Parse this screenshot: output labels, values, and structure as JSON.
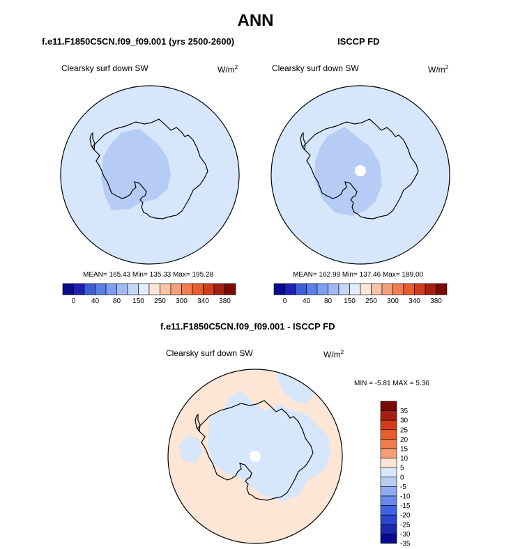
{
  "main_title": "ANN",
  "panels": {
    "left": {
      "case": "f.e11.F1850C5CN.f09_f09.001 (yrs 2500-2600)",
      "variable": "Clearsky surf down SW",
      "units": "W/m",
      "units_sup": "2",
      "stats": "MEAN= 165.43  Min= 135.33  Max= 195.28"
    },
    "right": {
      "case": "ISCCP FD",
      "variable": "Clearsky surf down SW",
      "units": "W/m",
      "units_sup": "2",
      "stats": "MEAN= 162.99  Min= 137.46  Max= 189.00"
    },
    "diff": {
      "case": "f.e11.F1850C5CN.f09_f09.001 - ISCCP FD",
      "variable": "Clearsky surf down SW",
      "units": "W/m",
      "units_sup": "2",
      "stats": "MIN =  -5.81 MAX =   5.36"
    }
  },
  "chart_data": [
    {
      "type": "heatmap",
      "title": "f.e11.F1850C5CN.f09_f09.001 (yrs 2500-2600)",
      "variable": "Clearsky surf down SW",
      "units": "W/m2",
      "projection": "south polar stereographic",
      "mean": 165.43,
      "min": 135.33,
      "max": 195.28,
      "colorbar": {
        "orientation": "horizontal",
        "colors": [
          "#0a0a8c",
          "#1f1fb5",
          "#3c5fd8",
          "#5a7fe6",
          "#7d9df0",
          "#a0b9f5",
          "#c5d6f8",
          "#e2ecfb",
          "#fde6d6",
          "#f9c3a6",
          "#f5a07a",
          "#f07c50",
          "#e85c2c",
          "#d13d1a",
          "#a32010",
          "#7a0a06"
        ],
        "tick_labels": [
          "0",
          "40",
          "80",
          "150",
          "250",
          "300",
          "340",
          "380"
        ]
      }
    },
    {
      "type": "heatmap",
      "title": "ISCCP FD",
      "variable": "Clearsky surf down SW",
      "units": "W/m2",
      "projection": "south polar stereographic",
      "mean": 162.99,
      "min": 137.46,
      "max": 189.0,
      "colorbar": {
        "orientation": "horizontal",
        "colors": [
          "#0a0a8c",
          "#1f1fb5",
          "#3c5fd8",
          "#5a7fe6",
          "#7d9df0",
          "#a0b9f5",
          "#c5d6f8",
          "#e2ecfb",
          "#fde6d6",
          "#f9c3a6",
          "#f5a07a",
          "#f07c50",
          "#e85c2c",
          "#d13d1a",
          "#a32010",
          "#7a0a06"
        ],
        "tick_labels": [
          "0",
          "40",
          "80",
          "150",
          "250",
          "300",
          "340",
          "380"
        ]
      }
    },
    {
      "type": "heatmap",
      "title": "f.e11.F1850C5CN.f09_f09.001 - ISCCP FD",
      "variable": "Clearsky surf down SW",
      "units": "W/m2",
      "projection": "south polar stereographic",
      "min": -5.81,
      "max": 5.36,
      "colorbar": {
        "orientation": "vertical",
        "colors": [
          "#7a0a06",
          "#a32010",
          "#d13d1a",
          "#e85c2c",
          "#f07c50",
          "#f5a07a",
          "#fde6d6",
          "#dbe7fb",
          "#b8ccf4",
          "#8faaf0",
          "#6a88ea",
          "#3f64e0",
          "#2a45d0",
          "#1a2aac",
          "#0a0a8c"
        ],
        "tick_labels": [
          "35",
          "30",
          "25",
          "20",
          "15",
          "10",
          "5",
          "0",
          "-5",
          "-10",
          "-15",
          "-20",
          "-25",
          "-30",
          "-35"
        ]
      }
    }
  ],
  "colors": {
    "ocean_light_blue": "#d6e6fb",
    "mid_blue": "#b6ccf5",
    "diff_orange": "#fde6d6",
    "diff_blue": "#d6e6fb"
  }
}
